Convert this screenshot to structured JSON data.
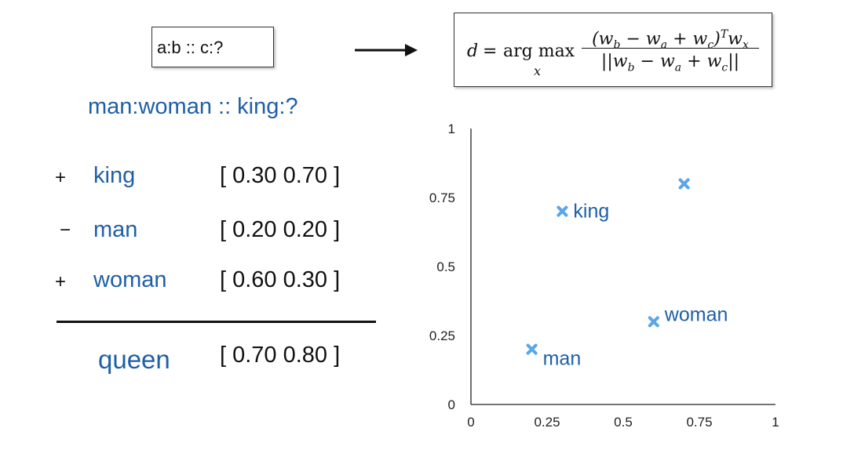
{
  "analogy_template": "a:b :: c:?",
  "formula": {
    "lhs": "d",
    "eq": "=",
    "operator": "arg max",
    "operator_sub": "x",
    "numerator": "(w_b − w_a + w_c)^T w_x",
    "denominator": "||w_b − w_a + w_c||"
  },
  "question": "man:woman :: king:?",
  "terms": [
    {
      "sign": "+",
      "word": "king",
      "vector": "[ 0.30 0.70 ]"
    },
    {
      "sign": "−",
      "word": "man",
      "vector": "[ 0.20 0.20 ]"
    },
    {
      "sign": "+",
      "word": "woman",
      "vector": "[ 0.60 0.30 ]"
    }
  ],
  "result": {
    "word": "queen",
    "vector": "[ 0.70 0.80 ]"
  },
  "chart_data": {
    "type": "scatter",
    "title": "",
    "xlabel": "",
    "ylabel": "",
    "xlim": [
      0,
      1
    ],
    "ylim": [
      0,
      1
    ],
    "x_ticks": [
      "0",
      "0.25",
      "0.5",
      "0.75",
      "1"
    ],
    "y_ticks": [
      "0",
      "0.25",
      "0.5",
      "0.75",
      "1"
    ],
    "marker": "x",
    "marker_color": "#5aa6e6",
    "label_color": "#1f5fa6",
    "points": [
      {
        "label": "king",
        "x": 0.3,
        "y": 0.7
      },
      {
        "label": "man",
        "x": 0.2,
        "y": 0.2
      },
      {
        "label": "woman",
        "x": 0.6,
        "y": 0.3
      },
      {
        "label": "",
        "x": 0.7,
        "y": 0.8
      }
    ]
  }
}
